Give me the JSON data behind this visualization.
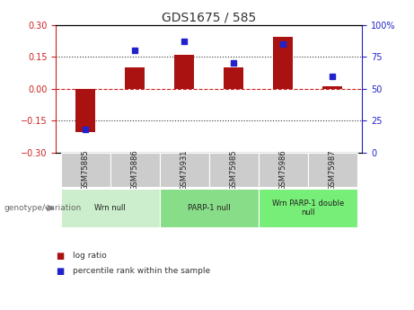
{
  "title": "GDS1675 / 585",
  "samples": [
    "GSM75885",
    "GSM75886",
    "GSM75931",
    "GSM75985",
    "GSM75986",
    "GSM75987"
  ],
  "log_ratio": [
    -0.205,
    0.1,
    0.16,
    0.1,
    0.245,
    0.01
  ],
  "percentile_rank": [
    18,
    80,
    87,
    70,
    85,
    60
  ],
  "ylim_left": [
    -0.3,
    0.3
  ],
  "ylim_right": [
    0,
    100
  ],
  "yticks_left": [
    -0.3,
    -0.15,
    0,
    0.15,
    0.3
  ],
  "yticks_right": [
    0,
    25,
    50,
    75,
    100
  ],
  "hlines_dotted": [
    -0.15,
    0.15
  ],
  "hline_zero_color": "#cc2222",
  "hline_dot_color": "#333333",
  "bar_color": "#aa1111",
  "dot_color": "#2222cc",
  "groups": [
    {
      "label": "Wrn null",
      "start": 0,
      "end": 1,
      "color": "#cceecc"
    },
    {
      "label": "PARP-1 null",
      "start": 2,
      "end": 3,
      "color": "#88dd88"
    },
    {
      "label": "Wrn PARP-1 double\nnull",
      "start": 4,
      "end": 5,
      "color": "#77ee77"
    }
  ],
  "left_axis_color": "#cc2222",
  "right_axis_color": "#2222cc",
  "legend_items": [
    {
      "label": "log ratio",
      "color": "#aa1111"
    },
    {
      "label": "percentile rank within the sample",
      "color": "#2222cc"
    }
  ],
  "genotype_label": "genotype/variation",
  "background_color": "#ffffff",
  "plot_bg_color": "#ffffff",
  "sample_box_color": "#cccccc",
  "title_color": "#333333",
  "title_fontsize": 10,
  "tick_fontsize": 7,
  "bar_width": 0.4
}
